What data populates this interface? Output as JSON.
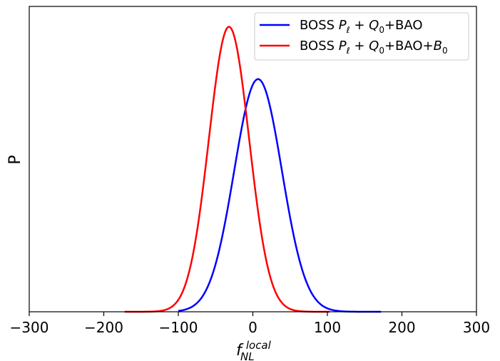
{
  "chart_data": {
    "type": "line",
    "title": "",
    "xlabel": "f_{NL}^{local}",
    "xlabel_main": "f",
    "xlabel_sub": "NL",
    "xlabel_sup": "local",
    "ylabel": "P",
    "xlim": [
      -300,
      300
    ],
    "ylim": [
      0,
      1.05
    ],
    "xticks": [
      -300,
      -200,
      -100,
      0,
      100,
      200,
      300
    ],
    "xtick_labels": [
      "−300",
      "−200",
      "−100",
      "0",
      "100",
      "200",
      "300"
    ],
    "yticks_visible": false,
    "grid": false,
    "legend_position": "top-right",
    "series": [
      {
        "name": "BOSS P_ℓ + Q_0+BAO",
        "legend_label": {
          "p1": "BOSS ",
          "p2": "P",
          "p3": "ℓ",
          "p4": " + ",
          "p5": "Q",
          "p6": "0",
          "p7": "+BAO",
          "p8": "",
          "p9": ""
        },
        "color": "#0000ff",
        "mean": 7,
        "sigma": 32,
        "peak": 0.8,
        "x_range": [
          -100,
          172
        ]
      },
      {
        "name": "BOSS P_ℓ + Q_0+BAO+B_0",
        "legend_label": {
          "p1": "BOSS ",
          "p2": "P",
          "p3": "ℓ",
          "p4": " + ",
          "p5": "Q",
          "p6": "0",
          "p7": "+BAO+",
          "p8": "B",
          "p9": "0"
        },
        "color": "#ff0000",
        "mean": -32,
        "sigma": 27,
        "peak": 0.98,
        "x_range": [
          -172,
          103
        ]
      }
    ]
  }
}
